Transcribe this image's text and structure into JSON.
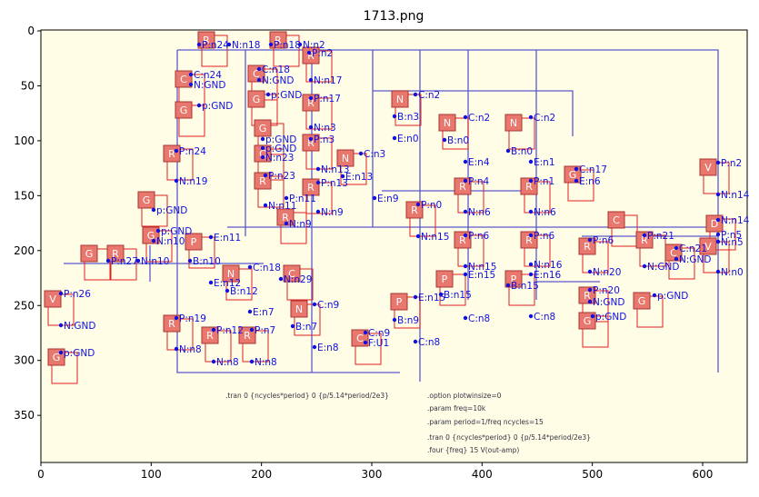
{
  "title": "1713.png",
  "axes": {
    "xticks": [
      0,
      100,
      200,
      300,
      400,
      500,
      600
    ],
    "yticks": [
      0,
      50,
      100,
      150,
      200,
      250,
      300,
      350
    ]
  },
  "labels": [
    "P:n24",
    "N:n18",
    "P:n18",
    "N:n2",
    "P:n2",
    "C:n18",
    "C:n24",
    "N:GND",
    "N:GND",
    "N:n17",
    "p:GND",
    "p:GND",
    "P:n17",
    "N:n3",
    "P:n3",
    "p:GND",
    "p:GND",
    "N:n23",
    "P:n24",
    "N:n19",
    "P:n23",
    "N:n11",
    "N:n13",
    "P:n13",
    "N:n9",
    "C:n3",
    "E:n13",
    "P:n11",
    "N:n9",
    "C:n2",
    "B:n3",
    "E:n0",
    "C:n2",
    "B:n0",
    "E:n4",
    "C:n2",
    "B:n0",
    "E:n1",
    "P:n4",
    "N:n6",
    "P:n1",
    "N:n6",
    "P:n0",
    "N:n15",
    "E:n9",
    "P:n6",
    "N:n15",
    "P:n6",
    "N:n16",
    "E:n15",
    "B:n15",
    "C:n8",
    "B:n15",
    "E:n16",
    "C:n8",
    "C:n17",
    "E:n6",
    "P:n6",
    "N:n20",
    "P:n21",
    "N:GND",
    "C:n21",
    "N:GND",
    "P:n2",
    "N:n14",
    "N:n14",
    "P:n5",
    "N:n5",
    "N:n0",
    "P:n20",
    "N:GND",
    "p:GND",
    "p:GND",
    "E:n11",
    "B:n10",
    "E:n12",
    "C:n18",
    "B:n12",
    "E:n7",
    "N:n29",
    "C:n9",
    "B:n7",
    "E:n8",
    "C:n9",
    "F:U1",
    "E:n15",
    "B:n9",
    "C:n8",
    "P:n19",
    "N:n8",
    "P:n12",
    "N:n8",
    "P:n7",
    "N:n8",
    "p:GND",
    "N:n10",
    "p:GND",
    "P:n27",
    "N:n10",
    "P:n26",
    "N:GND",
    "p:GND"
  ],
  "markers": [
    "R",
    "R",
    "R",
    "C",
    "C",
    "G",
    "G",
    "R",
    "G",
    "C",
    "R",
    "R",
    "R",
    "R",
    "N",
    "N",
    "N",
    "N",
    "R",
    "R",
    "R",
    "R",
    "G",
    "G",
    "P",
    "N",
    "C",
    "R",
    "R",
    "P",
    "P",
    "G",
    "C",
    "R",
    "R",
    "C",
    "V",
    "D",
    "V",
    "N",
    "P",
    "C",
    "R",
    "R",
    "R",
    "G",
    "R",
    "V",
    "G",
    "R",
    "G",
    "G"
  ],
  "schematic_text": [
    ".tran 0 {ncycles*period} 0 {p/5.14*period/2e3}",
    ".option plotwinsize=0",
    ".param freq=10k",
    ".param period=1/freq ncycles=15",
    ".tran 0 {ncycles*period} 0 {p/5.14*period/2e3}",
    ".four {freq} 15 V(out-amp)"
  ]
}
